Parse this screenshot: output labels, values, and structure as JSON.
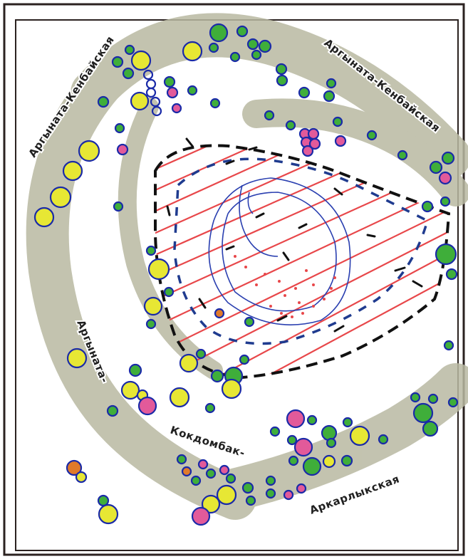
{
  "map": {
    "labels": [
      {
        "id": "label-argynata-kenbai-left",
        "text": "Аргыната-Кенбайская"
      },
      {
        "id": "label-argynata-kenbai-right",
        "text": "Аргыната-Кенбайская"
      },
      {
        "id": "label-argynata",
        "text": "Аргыната-"
      },
      {
        "id": "label-kokdombak",
        "text": "Кокдомбак-"
      },
      {
        "id": "label-arkarlyk",
        "text": "Аркарлыкская"
      }
    ]
  },
  "colors": {
    "frame": "#2b2220",
    "belt": "#b9b9a2",
    "hatch": "#e8474a",
    "outline": "#111111",
    "dash_blue": "#1f3b8f",
    "intrusion_yellow": "#e7e734",
    "intrusion_green": "#3fae3a",
    "intrusion_pink": "#e25a9a",
    "intrusion_orange": "#e07a2a",
    "intrusion_stroke": "#1a2aa8"
  }
}
